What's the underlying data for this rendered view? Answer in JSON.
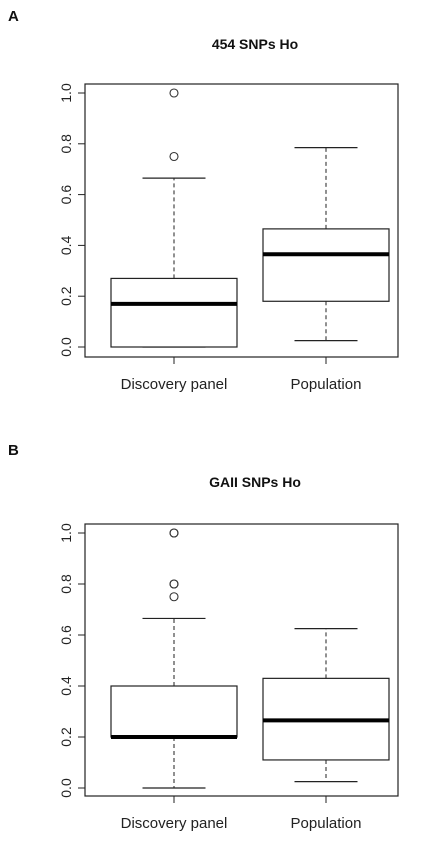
{
  "chart_data": [
    {
      "panel_label": "A",
      "type": "box",
      "title": "454 SNPs Ho",
      "xlabel": "",
      "ylabel": "",
      "ylim": [
        0.0,
        1.0
      ],
      "yticks": [
        "0.0",
        "0.2",
        "0.4",
        "0.6",
        "0.8",
        "1.0"
      ],
      "categories": [
        "Discovery panel",
        "Population"
      ],
      "boxes": [
        {
          "min": 0.0,
          "q1": 0.0,
          "median": 0.17,
          "q3": 0.27,
          "max": 0.665,
          "outliers": [
            0.75,
            1.0
          ]
        },
        {
          "min": 0.025,
          "q1": 0.18,
          "median": 0.365,
          "q3": 0.465,
          "max": 0.785,
          "outliers": []
        }
      ]
    },
    {
      "panel_label": "B",
      "type": "box",
      "title": "GAII SNPs Ho",
      "xlabel": "",
      "ylabel": "",
      "ylim": [
        0.0,
        1.0
      ],
      "yticks": [
        "0.0",
        "0.2",
        "0.4",
        "0.6",
        "0.8",
        "1.0"
      ],
      "categories": [
        "Discovery panel",
        "Population"
      ],
      "boxes": [
        {
          "min": 0.0,
          "q1": 0.2,
          "median": 0.2,
          "q3": 0.4,
          "max": 0.665,
          "outliers": [
            0.75,
            0.8,
            0.8,
            1.0,
            1.0
          ]
        },
        {
          "min": 0.025,
          "q1": 0.11,
          "median": 0.265,
          "q3": 0.43,
          "max": 0.625,
          "outliers": []
        }
      ]
    }
  ]
}
